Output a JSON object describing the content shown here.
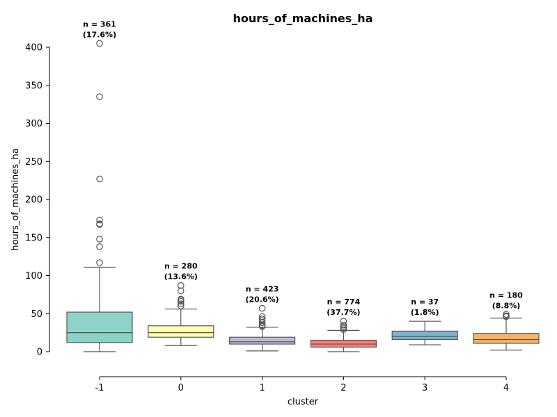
{
  "chart_data": {
    "type": "box",
    "title": "hours_of_machines_ha",
    "xlabel": "cluster",
    "ylabel": "hours_of_machines_ha",
    "ylim": [
      -33,
      410
    ],
    "yticks": [
      0,
      50,
      100,
      150,
      200,
      250,
      300,
      350,
      400
    ],
    "grid": false,
    "categories": [
      "-1",
      "0",
      "1",
      "2",
      "3",
      "4"
    ],
    "boxes": [
      {
        "category": "-1",
        "color": "#8dd3c7",
        "whisker_low": 0,
        "q1": 12,
        "median": 25,
        "q3": 52,
        "whisker_high": 111,
        "outliers": [
          117,
          138,
          148,
          167,
          168,
          173,
          227,
          335,
          405
        ],
        "count_line1": "n = 361",
        "count_line2": "(17.6%)"
      },
      {
        "category": "0",
        "color": "#ffffb3",
        "whisker_low": 8,
        "q1": 19,
        "median": 25,
        "q3": 34,
        "whisker_high": 56,
        "outliers": [
          60,
          63,
          66,
          68,
          69,
          80,
          87
        ],
        "count_line1": "n = 280",
        "count_line2": "(13.6%)"
      },
      {
        "category": "1",
        "color": "#bebada",
        "whisker_low": 1,
        "q1": 10,
        "median": 13,
        "q3": 19,
        "whisker_high": 32,
        "outliers": [
          33,
          34,
          35,
          38,
          41,
          43,
          46,
          57
        ],
        "count_line1": "n = 423",
        "count_line2": "(20.6%)"
      },
      {
        "category": "2",
        "color": "#fb8072",
        "whisker_low": 0,
        "q1": 6,
        "median": 10,
        "q3": 15,
        "whisker_high": 28,
        "outliers": [
          29,
          31,
          33,
          35,
          40
        ],
        "count_line1": "n = 774",
        "count_line2": "(37.7%)"
      },
      {
        "category": "3",
        "color": "#80b1d3",
        "whisker_low": 9,
        "q1": 16,
        "median": 20,
        "q3": 27,
        "whisker_high": 40,
        "outliers": [],
        "count_line1": "n = 37",
        "count_line2": "(1.8%)"
      },
      {
        "category": "4",
        "color": "#fdb462",
        "whisker_low": 2,
        "q1": 11,
        "median": 16,
        "q3": 24,
        "whisker_high": 44,
        "outliers": [
          46,
          47,
          49
        ],
        "count_line1": "n = 180",
        "count_line2": "(8.8%)"
      }
    ]
  }
}
